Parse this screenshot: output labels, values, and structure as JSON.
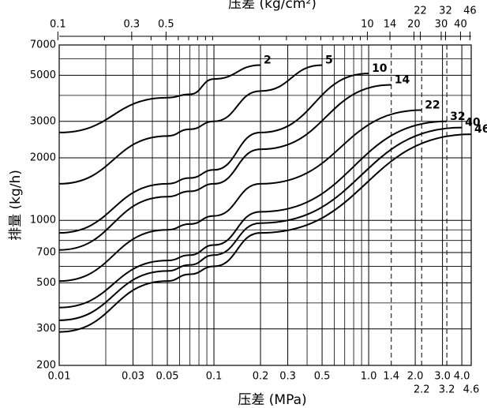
{
  "chart_data": {
    "type": "line",
    "title": "压差 (kg/cm²)",
    "xlabel": "压差 (MPa)",
    "ylabel": "排量 (kg/h)",
    "log_x": true,
    "log_y": true,
    "grid": true,
    "color": "#000000",
    "xlim": [
      0.01,
      4.6
    ],
    "ylim": [
      200,
      7000
    ],
    "xticks": [
      0.01,
      0.03,
      0.05,
      0.1,
      0.2,
      0.3,
      0.5,
      {
        "value": 1,
        "label": "1.0"
      },
      1.4,
      {
        "value": 2,
        "label": "2.0"
      },
      2.2,
      {
        "value": 3,
        "label": "3.0"
      },
      3.2,
      {
        "value": 4,
        "label": "4.0"
      },
      4.6
    ],
    "minor_xgrid": [
      0.02,
      0.04,
      0.06,
      0.07,
      0.08,
      0.09,
      0.4,
      0.6,
      0.7,
      0.8,
      0.9
    ],
    "dashed_xgrid": [
      1.4,
      2.2,
      3.2
    ],
    "yticks": [
      200,
      300,
      500,
      700,
      1000,
      2000,
      3000,
      5000,
      7000
    ],
    "minor_ygrid": [
      400,
      600,
      800,
      900,
      4000,
      6000
    ],
    "x2lim": [
      0.102,
      46.9
    ],
    "x2ticks": [
      0.1,
      0.3,
      0.5,
      10,
      14,
      20,
      22,
      30,
      32,
      40,
      46
    ],
    "x2minor": [
      0.2,
      0.4,
      0.6,
      0.7,
      0.8,
      0.9,
      1,
      2,
      3,
      4,
      5,
      6,
      7,
      8,
      9
    ],
    "series": [
      {
        "name": "2",
        "x": [
          0.01,
          0.05,
          0.07,
          0.1,
          0.2
        ],
        "values": [
          2650,
          3900,
          4050,
          4800,
          5600
        ]
      },
      {
        "name": "5",
        "x": [
          0.01,
          0.05,
          0.07,
          0.1,
          0.2,
          0.5
        ],
        "values": [
          1500,
          2550,
          2750,
          3000,
          4200,
          5600
        ]
      },
      {
        "name": "10",
        "x": [
          0.01,
          0.05,
          0.07,
          0.1,
          0.2,
          1
        ],
        "values": [
          870,
          1500,
          1600,
          1750,
          2650,
          5100
        ]
      },
      {
        "name": "14",
        "x": [
          0.01,
          0.05,
          0.07,
          0.1,
          0.2,
          1.4
        ],
        "values": [
          720,
          1300,
          1380,
          1500,
          2200,
          4500
        ]
      },
      {
        "name": "22",
        "x": [
          0.01,
          0.05,
          0.07,
          0.1,
          0.2,
          2.2
        ],
        "values": [
          510,
          900,
          960,
          1050,
          1500,
          3400
        ]
      },
      {
        "name": "32",
        "x": [
          0.01,
          0.05,
          0.07,
          0.1,
          0.2,
          3.2
        ],
        "values": [
          380,
          640,
          680,
          760,
          1100,
          3000
        ]
      },
      {
        "name": "40",
        "x": [
          0.01,
          0.05,
          0.07,
          0.1,
          0.2,
          4
        ],
        "values": [
          330,
          570,
          610,
          680,
          970,
          2800
        ]
      },
      {
        "name": "46",
        "x": [
          0.01,
          0.05,
          0.07,
          0.1,
          0.2,
          4.6
        ],
        "values": [
          290,
          510,
          550,
          600,
          870,
          2600
        ]
      }
    ]
  }
}
